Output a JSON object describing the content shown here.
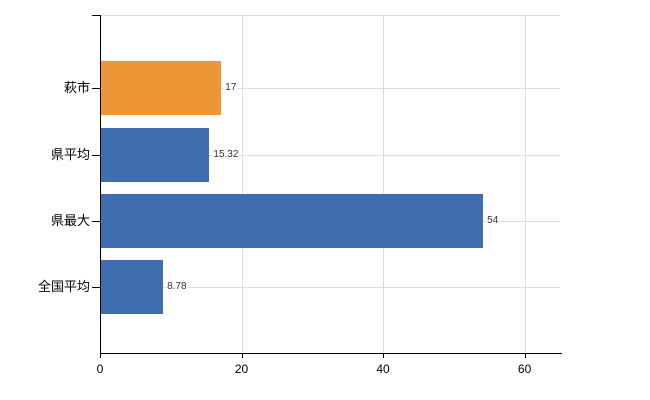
{
  "chart_data": {
    "type": "bar",
    "orientation": "horizontal",
    "title": "",
    "xlabel": "",
    "ylabel": "",
    "categories": [
      "萩市",
      "県平均",
      "県最大",
      "全国平均"
    ],
    "values": [
      17,
      15.32,
      54,
      8.78
    ],
    "value_labels": [
      "17",
      "15.32",
      "54",
      "8.78"
    ],
    "bar_colors": [
      "#ee9536",
      "#3e6eaf",
      "#3e6eaf",
      "#3e6eaf"
    ],
    "x_ticks": [
      0,
      20,
      40,
      60
    ],
    "x_tick_labels": [
      "0",
      "20",
      "40",
      "60"
    ],
    "xlim": [
      0,
      65
    ],
    "grid": true,
    "legend_position": "none"
  },
  "colors": {
    "highlight_bar": "#ee9536",
    "default_bar": "#3e6eaf",
    "grid": "#dcdcdc",
    "axis": "#000000",
    "value_label": "#333333",
    "background": "#ffffff"
  }
}
